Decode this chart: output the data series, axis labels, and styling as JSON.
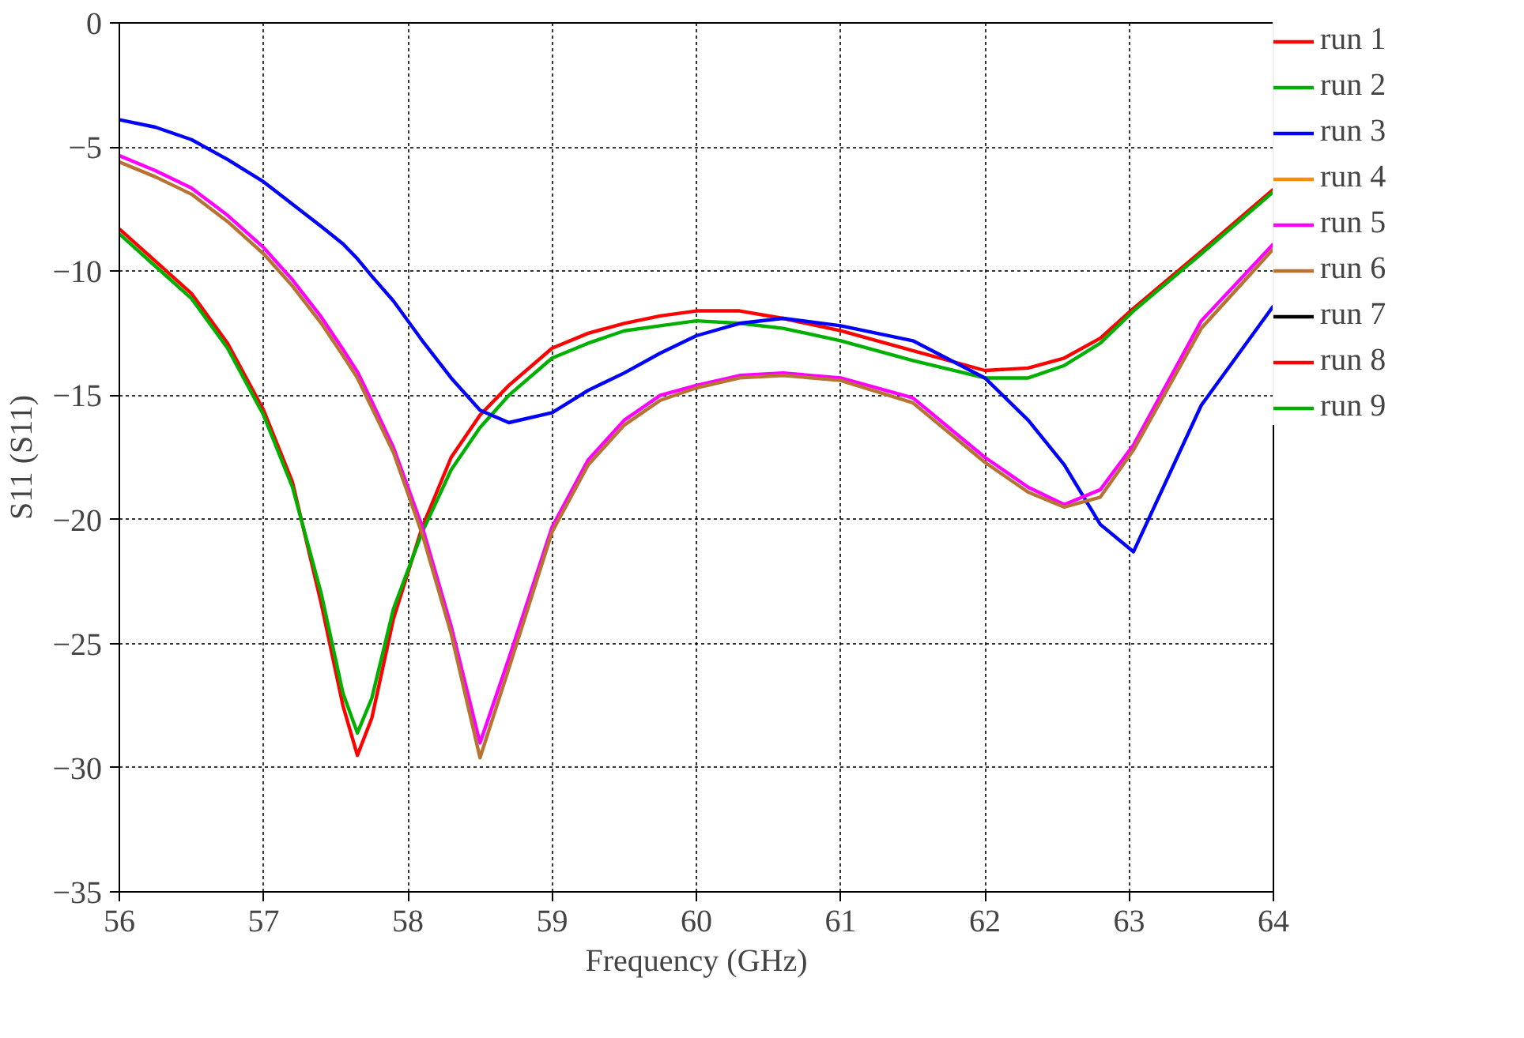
{
  "chart_data": {
    "type": "line",
    "xlabel": "Frequency (GHz)",
    "ylabel": "S11 (S11)",
    "x": [
      56,
      56.25,
      56.5,
      56.75,
      57,
      57.2,
      57.4,
      57.55,
      57.65,
      57.75,
      57.9,
      58.1,
      58.3,
      58.5,
      58.7,
      59,
      59.25,
      59.5,
      59.75,
      60,
      60.3,
      60.6,
      61,
      61.5,
      62,
      62.3,
      62.55,
      62.8,
      63.03,
      63.5,
      64
    ],
    "xlim": [
      56,
      64
    ],
    "ylim": [
      -35,
      0
    ],
    "xticks": [
      56,
      57,
      58,
      59,
      60,
      61,
      62,
      63,
      64
    ],
    "yticks": [
      -35,
      -30,
      -25,
      -20,
      -15,
      -10,
      -5,
      0
    ],
    "grid": true,
    "legend": "right",
    "line_style": "solid",
    "marker": "none",
    "series": [
      {
        "name": "run 1",
        "color": "#ff0000",
        "values": [
          -8.3,
          -9.6,
          -10.9,
          -12.9,
          -15.6,
          -18.5,
          -23.4,
          -27.5,
          -29.5,
          -28,
          -24,
          -20.3,
          -17.5,
          -15.8,
          -14.6,
          -13.1,
          -12.5,
          -12.1,
          -11.8,
          -11.6,
          -11.6,
          -11.9,
          -12.4,
          -13.2,
          -14.0,
          -13.9,
          -13.5,
          -12.7,
          -11.5,
          -9.2,
          -6.7
        ]
      },
      {
        "name": "run 2",
        "color": "#00b000",
        "values": [
          -8.5,
          -9.8,
          -11.1,
          -13.1,
          -15.8,
          -18.7,
          -23,
          -27,
          -28.6,
          -27.2,
          -23.6,
          -20.5,
          -18,
          -16.3,
          -15,
          -13.5,
          -12.9,
          -12.4,
          -12.2,
          -12.0,
          -12.1,
          -12.3,
          -12.8,
          -13.6,
          -14.3,
          -14.3,
          -13.8,
          -12.9,
          -11.6,
          -9.3,
          -6.8
        ]
      },
      {
        "name": "run 3",
        "color": "#0000ff",
        "values": [
          -3.9,
          -4.2,
          -4.7,
          -5.5,
          -6.4,
          -7.3,
          -8.2,
          -8.9,
          -9.5,
          -10.2,
          -11.2,
          -12.8,
          -14.3,
          -15.6,
          -16.1,
          -15.7,
          -14.8,
          -14.1,
          -13.3,
          -12.6,
          -12.1,
          -11.9,
          -12.2,
          -12.8,
          -14.3,
          -16.0,
          -17.8,
          -20.2,
          -21.3,
          -15.4,
          -11.4
        ]
      },
      {
        "name": "run 4",
        "color": "#ff8c00",
        "values": [
          null,
          null,
          null,
          null,
          null,
          null,
          null,
          null,
          null,
          null,
          null,
          null,
          null,
          null,
          null,
          null,
          null,
          null,
          null,
          null,
          null,
          null,
          null,
          null,
          null,
          null,
          null,
          null,
          null,
          null,
          null
        ]
      },
      {
        "name": "run 5",
        "color": "#ff00ff",
        "values": [
          -5.35,
          -5.95,
          -6.65,
          -7.75,
          -9.05,
          -10.35,
          -11.85,
          -13.15,
          -14.05,
          -15.25,
          -17.1,
          -20.3,
          -24.3,
          -29.0,
          -25.6,
          -20.3,
          -17.6,
          -16.0,
          -15.0,
          -14.6,
          -14.2,
          -14.1,
          -14.3,
          -15.1,
          -17.5,
          -18.7,
          -19.4,
          -18.8,
          -17.0,
          -12.0,
          -8.9
        ]
      },
      {
        "name": "run 6",
        "color": "#b87333",
        "values": [
          -5.6,
          -6.2,
          -6.9,
          -8.0,
          -9.3,
          -10.6,
          -12.1,
          -13.4,
          -14.3,
          -15.5,
          -17.3,
          -20.6,
          -24.6,
          -29.6,
          -26.0,
          -20.5,
          -17.8,
          -16.2,
          -15.2,
          -14.7,
          -14.3,
          -14.2,
          -14.4,
          -15.3,
          -17.7,
          -18.9,
          -19.5,
          -19.1,
          -17.2,
          -12.3,
          -9.1
        ]
      },
      {
        "name": "run 7",
        "color": "#000000",
        "values": [
          null,
          null,
          null,
          null,
          null,
          null,
          null,
          null,
          null,
          null,
          null,
          null,
          null,
          null,
          null,
          null,
          null,
          null,
          null,
          null,
          null,
          null,
          null,
          null,
          null,
          null,
          null,
          null,
          null,
          null,
          null
        ]
      },
      {
        "name": "run 8",
        "color": "#ff0000",
        "values": [
          null,
          null,
          null,
          null,
          null,
          null,
          null,
          null,
          null,
          null,
          null,
          null,
          null,
          null,
          null,
          null,
          null,
          null,
          null,
          null,
          null,
          null,
          null,
          null,
          null,
          null,
          null,
          null,
          null,
          null,
          null
        ]
      },
      {
        "name": "run 9",
        "color": "#00b000",
        "values": [
          null,
          null,
          null,
          null,
          null,
          null,
          null,
          null,
          null,
          null,
          null,
          null,
          null,
          null,
          null,
          null,
          null,
          null,
          null,
          null,
          null,
          null,
          null,
          null,
          null,
          null,
          null,
          null,
          null,
          null,
          null
        ]
      }
    ]
  }
}
